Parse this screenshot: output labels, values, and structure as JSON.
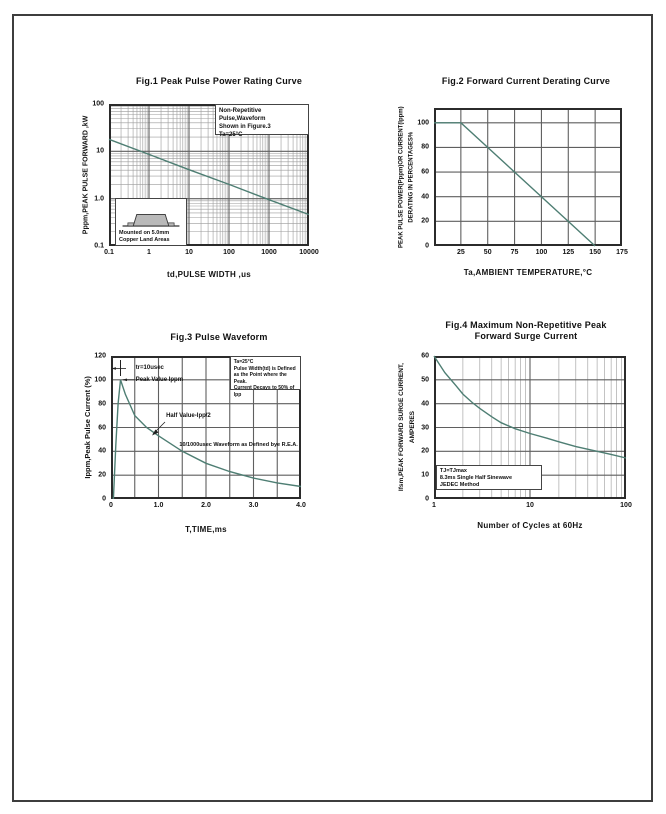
{
  "page": {
    "background": "#ffffff",
    "border_color": "#3d3d3d"
  },
  "colors": {
    "curve": "#4e7e73",
    "grid_minor": "#9b9b9b",
    "grid_major": "#5f5f5f",
    "frame": "#2b2b2b",
    "text": "#111111"
  },
  "chart_data": [
    {
      "id": "fig1",
      "type": "line",
      "title": "Fig.1  Peak Pulse Power Rating Curve",
      "xlabel": "td,PULSE WIDTH ,us",
      "ylabel": "Pppm,PEAK PULSE  FORWARD ,kW",
      "xscale": "log",
      "xlim": [
        0.1,
        10000
      ],
      "yscale": "log",
      "ylim": [
        0.1,
        100
      ],
      "xticks": {
        "values": [
          0.1,
          1,
          10,
          100,
          1000,
          10000
        ],
        "labels": [
          "0.1",
          "1",
          "10",
          "100",
          "1000",
          "10000"
        ]
      },
      "yticks": {
        "values": [
          100,
          10,
          1,
          0.1
        ],
        "labels": [
          "100",
          "10",
          "1.0",
          "0.1"
        ]
      },
      "grid": "log-log with minor decades",
      "legend": "none",
      "series": [
        {
          "name": "peak-pulse-power",
          "x": [
            0.1,
            1,
            10,
            100,
            1000,
            10000
          ],
          "y": [
            18,
            8.6,
            4.1,
            2.0,
            0.95,
            0.46
          ]
        }
      ],
      "annotations": {
        "note_lines": [
          "Non-Repetitive  Pulse,Waveform",
          "Shown in Figure.3",
          "Ta=25°C"
        ],
        "inset_lines": [
          "Mounted on 5.0mm",
          "Copper Land Areas"
        ]
      }
    },
    {
      "id": "fig2",
      "type": "line",
      "title": "Fig.2  Forward Current Derating Curve",
      "xlabel": "Ta,AMBIENT TEMPERATURE,°C",
      "ylabel_lines": [
        "PEAK PULSE POWER(Pppm)OR CURRENT(Ippm)",
        "DERATING IN PERCENTAGES%"
      ],
      "xscale": "linear",
      "xlim": [
        0,
        175
      ],
      "yscale": "linear",
      "ylim": [
        0,
        112
      ],
      "xgrid": [
        25,
        50,
        75,
        100,
        125,
        150
      ],
      "ygrid": [
        20,
        40,
        60,
        80,
        100
      ],
      "xticks": {
        "values": [
          25,
          50,
          75,
          100,
          125,
          150,
          175
        ],
        "labels": [
          "25",
          "50",
          "75",
          "100",
          "125",
          "150",
          "175"
        ]
      },
      "yticks": {
        "values": [
          0,
          20,
          40,
          60,
          80,
          100
        ],
        "labels": [
          "0",
          "20",
          "40",
          "60",
          "80",
          "100"
        ]
      },
      "grid": "major only",
      "legend": "none",
      "series": [
        {
          "name": "derating-percentage",
          "x": [
            0,
            25,
            150
          ],
          "y": [
            100,
            100,
            0
          ]
        }
      ]
    },
    {
      "id": "fig3",
      "type": "line",
      "title": "Fig.3  Pulse Waveform",
      "xlabel": "T,TIME,ms",
      "ylabel": "Ippm,Peak Pulse Current (%)",
      "xscale": "linear",
      "xlim": [
        0,
        4
      ],
      "yscale": "linear",
      "ylim": [
        0,
        120
      ],
      "xgrid": [
        0.5,
        1,
        1.5,
        2,
        2.5,
        3,
        3.5
      ],
      "ygrid": [
        20,
        40,
        60,
        80,
        100
      ],
      "xticks": {
        "values": [
          0,
          1,
          2,
          3,
          4
        ],
        "labels": [
          "0",
          "1.0",
          "2.0",
          "3.0",
          "4.0"
        ]
      },
      "yticks": {
        "values": [
          0,
          20,
          40,
          60,
          80,
          100,
          120
        ],
        "labels": [
          "0",
          "20",
          "40",
          "60",
          "80",
          "100",
          "120"
        ]
      },
      "grid": "major only",
      "legend": "none",
      "series": [
        {
          "name": "pulse-waveform",
          "x": [
            0.05,
            0.1,
            0.15,
            0.2,
            0.3,
            0.5,
            0.75,
            1.0,
            1.5,
            2.0,
            2.5,
            3.0,
            3.5,
            4.0
          ],
          "y": [
            0,
            45,
            80,
            100,
            88,
            70,
            60,
            53,
            40,
            30,
            23,
            17.5,
            13.5,
            10.5
          ]
        }
      ],
      "annotations": {
        "tr_label": "tr=10usec",
        "peak_label": "Peak  Value   Ippm",
        "half_label": "Half  Value-Ipp/2",
        "rea_label": "10/1000usec  Waveform as Defined bye R.E.A.",
        "note_lines": [
          "Ta=25°C",
          "Pulse  Width(td) is Defined",
          "as the Point where the Peak.",
          "Current  Decays to 50% of Ipp"
        ]
      }
    },
    {
      "id": "fig4",
      "type": "line",
      "title": "Fig.4  Maximum Non-Repetitive Peak Forward Surge Current",
      "title_lines": [
        "Fig.4  Maximum Non-Repetitive Peak",
        "Forward Surge Current"
      ],
      "xlabel": "Number of Cycles at 60Hz",
      "ylabel_lines": [
        "Ifsm,PEAK FORWARD SURGE CURRENT,",
        "AMPERES"
      ],
      "xscale": "log",
      "xlim": [
        1,
        100
      ],
      "yscale": "linear",
      "ylim": [
        0,
        60
      ],
      "ygrid": [
        10,
        20,
        30,
        40,
        50
      ],
      "xticks": {
        "values": [
          1,
          10,
          100
        ],
        "labels": [
          "1",
          "10",
          "100"
        ]
      },
      "yticks": {
        "values": [
          0,
          10,
          20,
          30,
          40,
          50,
          60
        ],
        "labels": [
          "0",
          "10",
          "20",
          "30",
          "40",
          "50",
          "60"
        ]
      },
      "grid": "semilog-x with minor decades",
      "legend": "none",
      "series": [
        {
          "name": "surge-current",
          "x": [
            1,
            1.3,
            1.7,
            2,
            2.5,
            3,
            4,
            5,
            7,
            10,
            15,
            20,
            30,
            50,
            70,
            100
          ],
          "y": [
            60,
            53,
            47.5,
            44,
            40.5,
            38,
            34.5,
            32,
            29.5,
            27.5,
            25.5,
            24,
            22,
            20,
            18.7,
            17.2
          ]
        }
      ],
      "annotations": {
        "note_lines": [
          "TJ=TJmax",
          "8.3ms Single Half  Sinewave",
          "JEDEC Method"
        ]
      }
    }
  ]
}
